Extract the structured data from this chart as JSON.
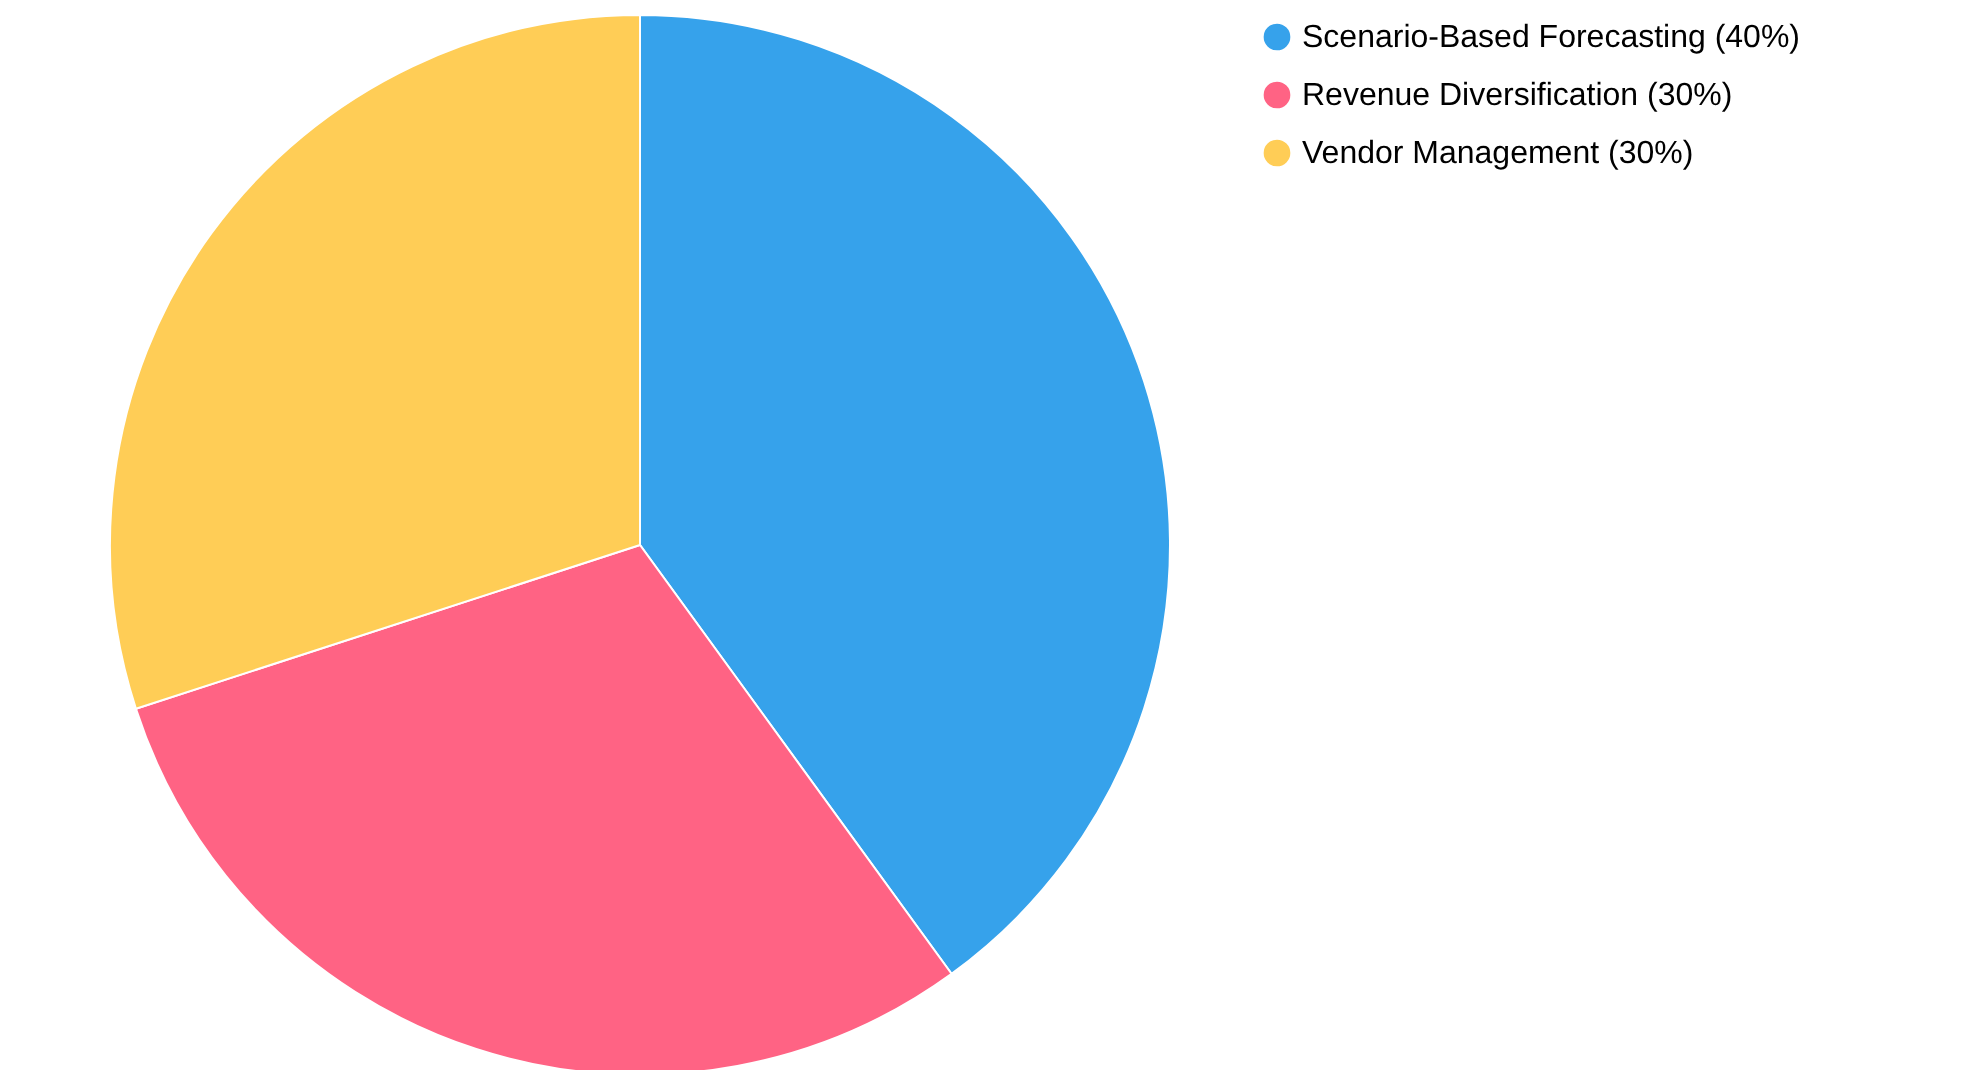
{
  "chart_data": {
    "type": "pie",
    "categories": [
      "Scenario-Based Forecasting (40%)",
      "Revenue Diversification (30%)",
      "Vendor Management (30%)"
    ],
    "values": [
      40,
      30,
      30
    ],
    "colors": [
      "#36a2eb",
      "#ff6384",
      "#ffcd56"
    ],
    "legend": "right"
  }
}
